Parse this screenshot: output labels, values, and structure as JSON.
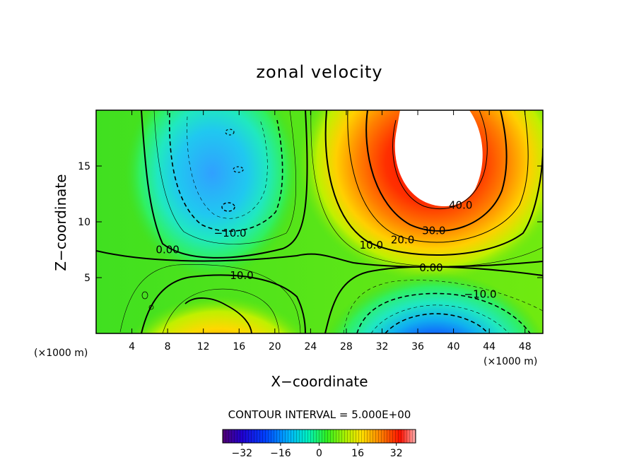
{
  "chart_data": {
    "type": "heatmap",
    "title": "zonal velocity",
    "xlabel": "X−coordinate",
    "ylabel": "Z−coordinate",
    "x_unit_left": "(×1000 m)",
    "x_unit_right": "(×1000 m)",
    "xlim": [
      0,
      50
    ],
    "ylim": [
      0,
      20
    ],
    "x_ticks": [
      4,
      8,
      12,
      16,
      20,
      24,
      28,
      32,
      36,
      40,
      44,
      48
    ],
    "y_ticks": [
      5,
      10,
      15
    ],
    "contour_interval_text": "CONTOUR INTERVAL = 5.000E+00",
    "contour_labels": [
      {
        "text": "40.0",
        "x": 40.8,
        "z": 11.5
      },
      {
        "text": "30.0",
        "x": 37.8,
        "z": 9.2
      },
      {
        "text": "20.0",
        "x": 34.3,
        "z": 8.4
      },
      {
        "text": "10.0",
        "x": 30.8,
        "z": 7.9
      },
      {
        "text": "−10.0",
        "x": 15.0,
        "z": 9.0
      },
      {
        "text": "0.00",
        "x": 8.0,
        "z": 7.5
      },
      {
        "text": "10.0",
        "x": 16.3,
        "z": 5.2
      },
      {
        "text": "0.00",
        "x": 37.5,
        "z": 5.9
      },
      {
        "text": "−10.0",
        "x": 43.0,
        "z": 3.5
      }
    ],
    "features": [
      {
        "kind": "positive jet core",
        "center_x": 39,
        "center_z": 17,
        "max": "> 40"
      },
      {
        "kind": "negative flow",
        "center_x": 13,
        "center_z": 14,
        "min": "about -18"
      },
      {
        "kind": "negative flow",
        "center_x": 39,
        "center_z": 1.2,
        "min": "about -30"
      },
      {
        "kind": "positive flow",
        "center_x": 14,
        "center_z": 1.5,
        "max": "about 25"
      }
    ],
    "colorbar": {
      "range": [
        -40,
        40
      ],
      "tick_labels": [
        "−32",
        "−16",
        "0",
        "16",
        "32"
      ],
      "tick_values": [
        -32,
        -16,
        0,
        16,
        32
      ]
    }
  }
}
